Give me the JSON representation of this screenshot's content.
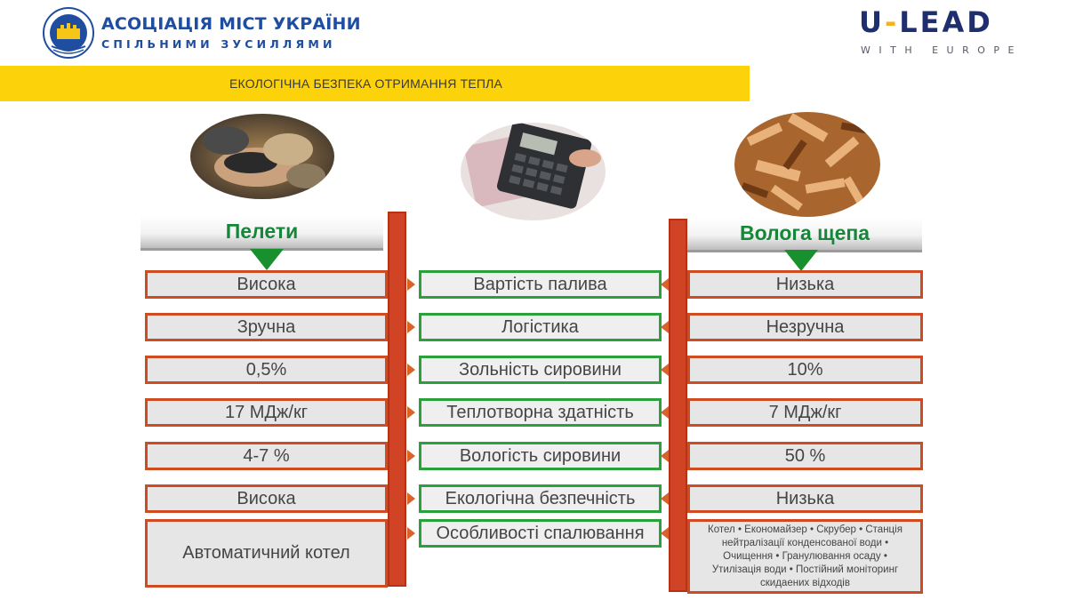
{
  "header": {
    "org_title": "АСОЦІАЦІЯ МІСТ УКРАЇНИ",
    "org_subtitle": "СПІЛЬНИМИ ЗУСИЛЛЯМИ",
    "emblem_text": "АСОЦІАЦІЯ МІСТ УКРАЇНИ",
    "partner_logo": "U-LEAD",
    "partner_sub": "WITH EUROPE"
  },
  "banner": {
    "title": "ЕКОЛОГІЧНА БЕЗПЕКА ОТРИМАННЯ ТЕПЛА"
  },
  "columns": {
    "left_title": "Пелети",
    "right_title": "Волога щепа"
  },
  "photos": {
    "left": "pellets-photo",
    "center": "calculator-photo",
    "right": "wood-chips-photo"
  },
  "rows": [
    {
      "left": "Висока",
      "criterion": "Вартість палива",
      "right": "Низька"
    },
    {
      "left": "Зручна",
      "criterion": "Логістика",
      "right": "Незручна"
    },
    {
      "left": "0,5%",
      "criterion": "Зольність сировини",
      "right": "10%"
    },
    {
      "left": "17 МДж/кг",
      "criterion": "Теплотворна здатність",
      "right": "7 МДж/кг"
    },
    {
      "left": "4-7 %",
      "criterion": "Вологість сировини",
      "right": "50 %"
    },
    {
      "left": "Висока",
      "criterion": "Екологічна безпечність",
      "right": "Низька"
    },
    {
      "left": "Автоматичний котел",
      "criterion": "Особливості спалювання",
      "right": "Котел • Економайзер • Скрубер • Станція нейтралізації конденсованої води • Очищення • Гранулювання осаду • Утилізація води • Постійний моніторинг скидаених відходів"
    }
  ],
  "colors": {
    "banner": "#fcd20a",
    "accent_red": "#cf4b22",
    "accent_green": "#2aa13a",
    "title_green": "#16863a",
    "brand_blue": "#1f4ea1"
  }
}
